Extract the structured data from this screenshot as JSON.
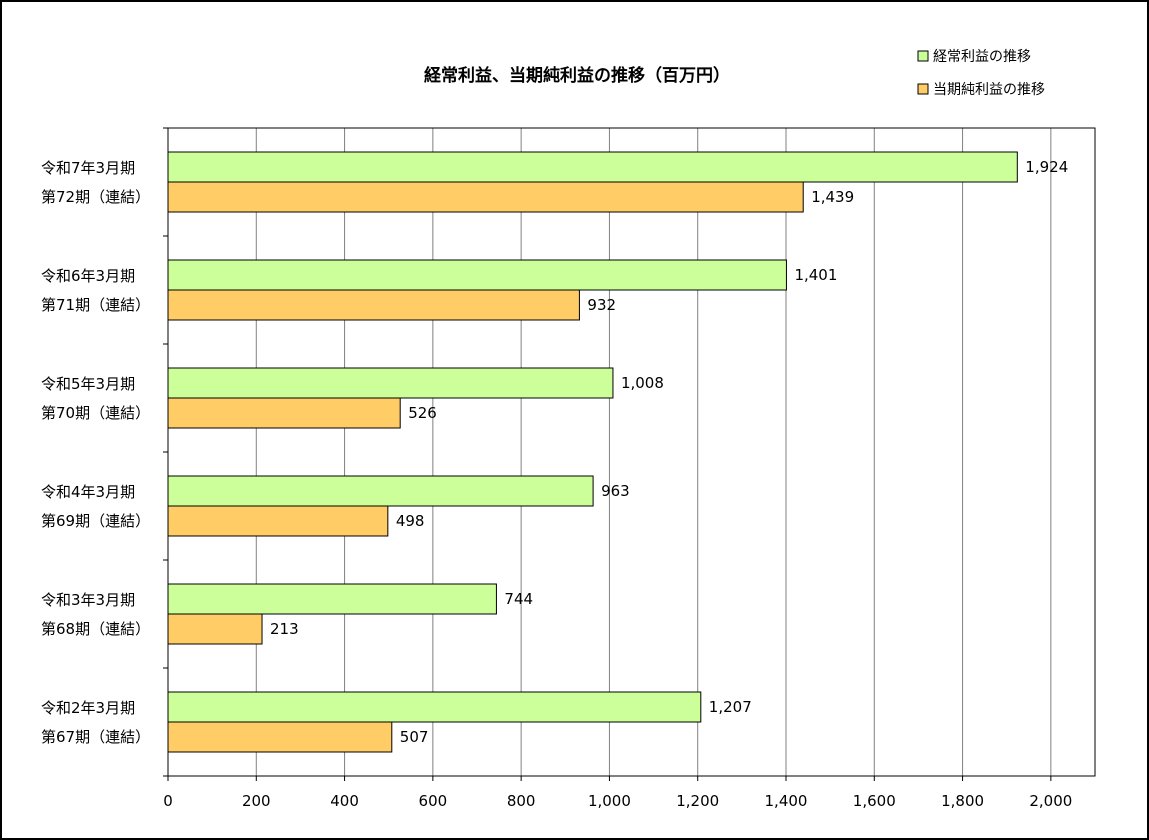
{
  "chart_data": {
    "type": "bar",
    "orientation": "horizontal",
    "title": "経常利益、当期純利益の推移（百万円）",
    "categories": [
      [
        "令和7年3月期",
        "第72期（連結）"
      ],
      [
        "令和6年3月期",
        "第71期（連結）"
      ],
      [
        "令和5年3月期",
        "第70期（連結）"
      ],
      [
        "令和4年3月期",
        "第69期（連結）"
      ],
      [
        "令和3年3月期",
        "第68期（連結）"
      ],
      [
        "令和2年3月期",
        "第67期（連結）"
      ]
    ],
    "series": [
      {
        "name": "経常利益の推移",
        "color": "#CCFF99",
        "values": [
          1924,
          1401,
          1008,
          963,
          744,
          1207
        ],
        "labels": [
          "1,924",
          "1,401",
          "1,008",
          "963",
          "744",
          "1,207"
        ]
      },
      {
        "name": "当期純利益の推移",
        "color": "#FFCC66",
        "values": [
          1439,
          932,
          526,
          498,
          213,
          507
        ],
        "labels": [
          "1,439",
          "932",
          "526",
          "498",
          "213",
          "507"
        ]
      }
    ],
    "xlim": [
      0,
      2100
    ],
    "xticks": [
      0,
      200,
      400,
      600,
      800,
      1000,
      1200,
      1400,
      1600,
      1800,
      2000
    ],
    "xtick_labels": [
      "0",
      "200",
      "400",
      "600",
      "800",
      "1,000",
      "1,200",
      "1,400",
      "1,600",
      "1,800",
      "2,000"
    ],
    "grid": true,
    "legend_position": "top-right"
  }
}
